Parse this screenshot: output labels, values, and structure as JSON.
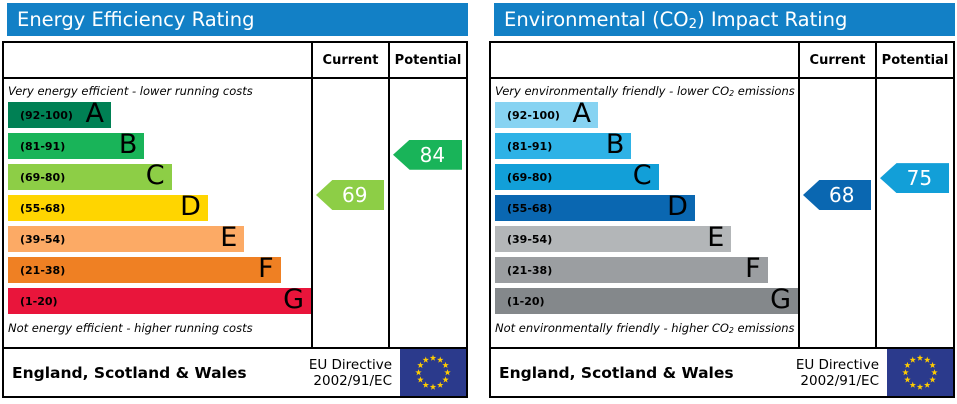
{
  "accent": {
    "title_bar": "#1280c6",
    "border": "#000000",
    "eu_flag_blue": "#2b3a8c",
    "eu_star_yellow": "#ffcc00"
  },
  "panels": [
    {
      "title": {
        "prefix": "Energy Efficiency Rating",
        "sub": "",
        "suffix": ""
      },
      "columns": {
        "current": "Current",
        "potential": "Potential"
      },
      "caption_top": {
        "prefix": "Very energy efficient - lower running costs",
        "sub": "",
        "suffix": ""
      },
      "caption_bottom": {
        "prefix": "Not energy efficient - higher running costs",
        "sub": "",
        "suffix": ""
      },
      "bands": [
        {
          "letter": "A",
          "range": "(92-100)",
          "color": "#008054",
          "width_pct": 34
        },
        {
          "letter": "B",
          "range": "(81-91)",
          "color": "#19b459",
          "width_pct": 45
        },
        {
          "letter": "C",
          "range": "(69-80)",
          "color": "#8dce46",
          "width_pct": 54
        },
        {
          "letter": "D",
          "range": "(55-68)",
          "color": "#ffd500",
          "width_pct": 66
        },
        {
          "letter": "E",
          "range": "(39-54)",
          "color": "#fcaa65",
          "width_pct": 78
        },
        {
          "letter": "F",
          "range": "(21-38)",
          "color": "#ef8023",
          "width_pct": 90
        },
        {
          "letter": "G",
          "range": "(1-20)",
          "color": "#e9153b",
          "width_pct": 100
        }
      ],
      "current": {
        "value": 69,
        "color": "#8dce46"
      },
      "potential": {
        "value": 84,
        "color": "#19b459"
      },
      "footer": {
        "region": "England, Scotland & Wales",
        "directive_line1": "EU Directive",
        "directive_line2": "2002/91/EC"
      }
    },
    {
      "title": {
        "prefix": "Environmental (CO",
        "sub": "2",
        "suffix": ") Impact Rating"
      },
      "columns": {
        "current": "Current",
        "potential": "Potential"
      },
      "caption_top": {
        "prefix": "Very environmentally friendly - lower CO",
        "sub": "2",
        "suffix": " emissions"
      },
      "caption_bottom": {
        "prefix": "Not environmentally friendly - higher CO",
        "sub": "2",
        "suffix": " emissions"
      },
      "bands": [
        {
          "letter": "A",
          "range": "(92-100)",
          "color": "#87d3f2",
          "width_pct": 34
        },
        {
          "letter": "B",
          "range": "(81-91)",
          "color": "#2eb2e6",
          "width_pct": 45
        },
        {
          "letter": "C",
          "range": "(69-80)",
          "color": "#129fd8",
          "width_pct": 54
        },
        {
          "letter": "D",
          "range": "(55-68)",
          "color": "#0a67b1",
          "width_pct": 66
        },
        {
          "letter": "E",
          "range": "(39-54)",
          "color": "#b3b6b8",
          "width_pct": 78
        },
        {
          "letter": "F",
          "range": "(21-38)",
          "color": "#9b9ea1",
          "width_pct": 90
        },
        {
          "letter": "G",
          "range": "(1-20)",
          "color": "#84888b",
          "width_pct": 100
        }
      ],
      "current": {
        "value": 68,
        "color": "#0a67b1"
      },
      "potential": {
        "value": 75,
        "color": "#129fd8"
      },
      "footer": {
        "region": "England, Scotland & Wales",
        "directive_line1": "EU Directive",
        "directive_line2": "2002/91/EC"
      }
    }
  ],
  "chart_data": [
    {
      "type": "bar",
      "title": "Energy Efficiency Rating",
      "orientation": "horizontal",
      "categories": [
        "A (92-100)",
        "B (81-91)",
        "C (69-80)",
        "D (55-68)",
        "E (39-54)",
        "F (21-38)",
        "G (1-20)"
      ],
      "values": [
        34,
        45,
        54,
        66,
        78,
        90,
        100
      ],
      "ylabel": "band bar width (% of scale column)",
      "band_colors": [
        "#008054",
        "#19b459",
        "#8dce46",
        "#ffd500",
        "#fcaa65",
        "#ef8023",
        "#e9153b"
      ],
      "annotations": {
        "current": {
          "value": 69,
          "band": "C"
        },
        "potential": {
          "value": 84,
          "band": "B"
        }
      },
      "caption_top": "Very energy efficient - lower running costs",
      "caption_bottom": "Not energy efficient - higher running costs",
      "footer": "England, Scotland & Wales | EU Directive 2002/91/EC"
    },
    {
      "type": "bar",
      "title": "Environmental (CO2) Impact Rating",
      "orientation": "horizontal",
      "categories": [
        "A (92-100)",
        "B (81-91)",
        "C (69-80)",
        "D (55-68)",
        "E (39-54)",
        "F (21-38)",
        "G (1-20)"
      ],
      "values": [
        34,
        45,
        54,
        66,
        78,
        90,
        100
      ],
      "ylabel": "band bar width (% of scale column)",
      "band_colors": [
        "#87d3f2",
        "#2eb2e6",
        "#129fd8",
        "#0a67b1",
        "#b3b6b8",
        "#9b9ea1",
        "#84888b"
      ],
      "annotations": {
        "current": {
          "value": 68,
          "band": "D"
        },
        "potential": {
          "value": 75,
          "band": "C"
        }
      },
      "caption_top": "Very environmentally friendly - lower CO2 emissions",
      "caption_bottom": "Not environmentally friendly - higher CO2 emissions",
      "footer": "England, Scotland & Wales | EU Directive 2002/91/EC"
    }
  ]
}
